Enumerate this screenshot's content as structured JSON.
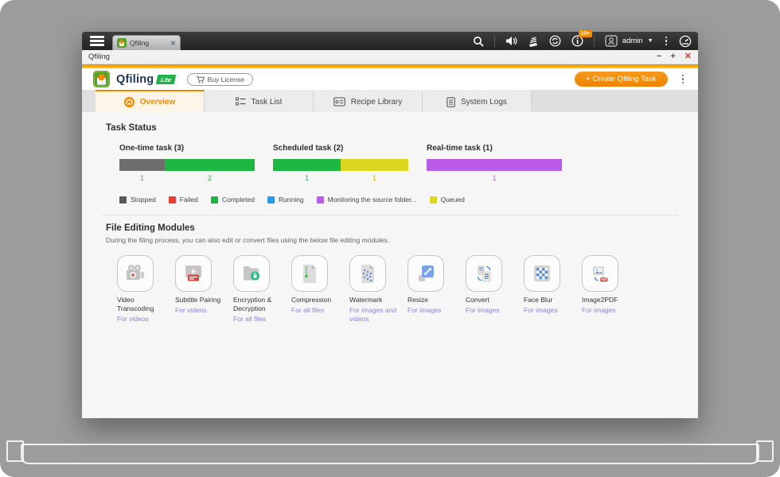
{
  "taskbar": {
    "app_tab_label": "Qfiling",
    "notification_badge": "10+",
    "user_label": "admin"
  },
  "window_titlebar": {
    "title": "Qfiling",
    "minimize": "−",
    "maximize": "+",
    "close": "✕"
  },
  "header": {
    "app_name": "Qfiling",
    "edition_badge": "Lite",
    "buy_license_label": "Buy License",
    "create_task_label": "+ Create Qfiling Task"
  },
  "tabs": [
    {
      "label": "Overview",
      "active": true
    },
    {
      "label": "Task List",
      "active": false
    },
    {
      "label": "Recipe Library",
      "active": false
    },
    {
      "label": "System Logs",
      "active": false
    }
  ],
  "task_status": {
    "title": "Task Status",
    "groups": [
      {
        "label": "One-time task (3)",
        "total": 3,
        "segments": [
          {
            "status": "Stopped",
            "value": 1,
            "color": "#6e6e6e",
            "count_color": "#8f8f8f"
          },
          {
            "status": "Completed",
            "value": 2,
            "color": "#1cb841",
            "count_color": "#2eb84c"
          }
        ]
      },
      {
        "label": "Scheduled task (2)",
        "total": 2,
        "segments": [
          {
            "status": "Completed",
            "value": 1,
            "color": "#1cb841",
            "count_color": "#2eb84c"
          },
          {
            "status": "Queued",
            "value": 1,
            "color": "#ddd621",
            "count_color": "#c2bb22"
          }
        ]
      },
      {
        "label": "Real-time task (1)",
        "total": 1,
        "segments": [
          {
            "status": "Monitoring the source folder",
            "value": 1,
            "color": "#bb5ce8",
            "count_color": "#bb63e0"
          }
        ]
      }
    ],
    "legend": [
      {
        "label": "Stopped",
        "color": "#595959"
      },
      {
        "label": "Failed",
        "color": "#e83f35"
      },
      {
        "label": "Completed",
        "color": "#1cb841"
      },
      {
        "label": "Running",
        "color": "#2b97e8"
      },
      {
        "label": "Monitoring the source folder...",
        "color": "#bb5ce8"
      },
      {
        "label": "Queued",
        "color": "#ddd621"
      }
    ]
  },
  "modules_section": {
    "title": "File Editing Modules",
    "subtitle": "During the filing process, you can also edit or convert files using the below file editing modules.",
    "modules": [
      {
        "name": "Video Transcoding",
        "scope": "For videos",
        "icon": "video-camera-icon"
      },
      {
        "name": "Subtitle Pairing",
        "scope": "For videos",
        "icon": "subtitle-icon"
      },
      {
        "name": "Encryption & Decryption",
        "scope": "For all files",
        "icon": "folder-lock-icon"
      },
      {
        "name": "Compression",
        "scope": "For all files",
        "icon": "zip-document-icon"
      },
      {
        "name": "Watermark",
        "scope": "For images and videos",
        "icon": "watermark-document-icon"
      },
      {
        "name": "Resize",
        "scope": "For images",
        "icon": "resize-arrow-icon"
      },
      {
        "name": "Convert",
        "scope": "For images",
        "icon": "convert-documents-icon"
      },
      {
        "name": "Face Blur",
        "scope": "For images",
        "icon": "checkerboard-icon"
      },
      {
        "name": "Image2PDF",
        "scope": "For images",
        "icon": "image-to-pdf-icon"
      }
    ]
  }
}
